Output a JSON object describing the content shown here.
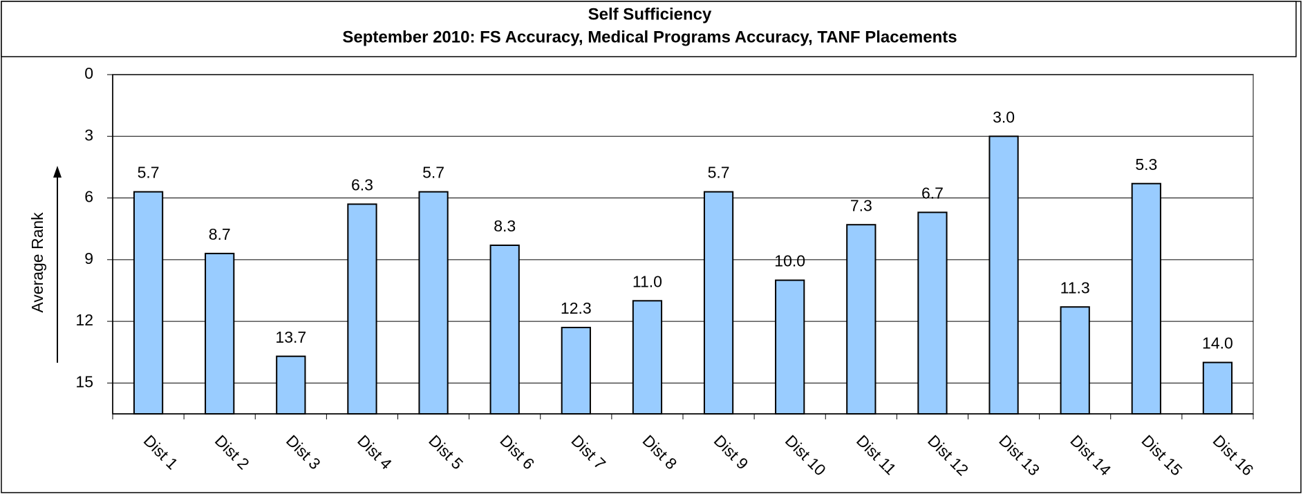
{
  "chart_data": {
    "type": "bar",
    "title": "Self Sufficiency",
    "subtitle": "September 2010: FS Accuracy, Medical Programs Accuracy, TANF Placements",
    "y_label": "Average Rank",
    "categories": [
      "Dist 1",
      "Dist 2",
      "Dist 3",
      "Dist 4",
      "Dist 5",
      "Dist 6",
      "Dist 7",
      "Dist 8",
      "Dist 9",
      "Dist 10",
      "Dist 11",
      "Dist 12",
      "Dist 13",
      "Dist 14",
      "Dist 15",
      "Dist 16"
    ],
    "values": [
      5.7,
      8.7,
      13.7,
      6.3,
      5.7,
      8.3,
      12.3,
      11.0,
      5.7,
      10.0,
      7.3,
      6.7,
      3.0,
      11.3,
      5.3,
      14.0
    ],
    "value_labels": [
      "5.7",
      "8.7",
      "13.7",
      "6.3",
      "5.7",
      "8.3",
      "12.3",
      "11.0",
      "5.7",
      "10.0",
      "7.3",
      "6.7",
      "3.0",
      "11.3",
      "5.3",
      "14.0"
    ],
    "color": "#99ccff",
    "ylim": [
      0,
      16.5
    ],
    "yticks": [
      0,
      3,
      6,
      9,
      12,
      15
    ],
    "y_inverted": true,
    "grid": true
  }
}
